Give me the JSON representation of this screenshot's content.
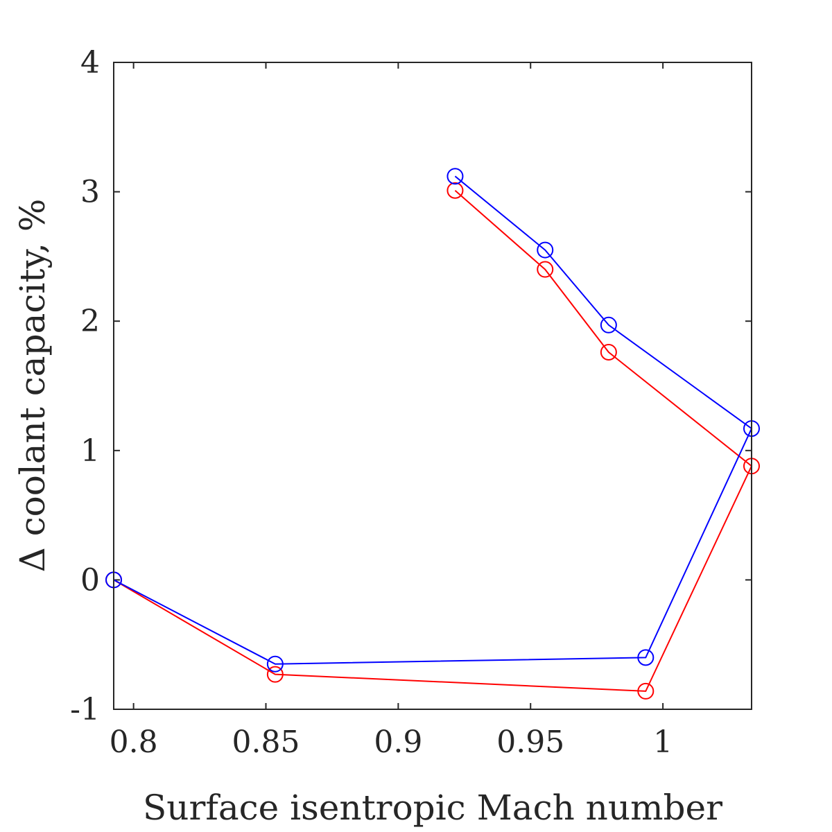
{
  "chart_data": {
    "type": "line",
    "xlabel": "Surface isentropic Mach number",
    "ylabel": "Δ  coolant capacity, %",
    "xlim": [
      0.7925,
      1.0335
    ],
    "ylim": [
      -1,
      4
    ],
    "xticks": [
      0.8,
      0.85,
      0.9,
      0.95,
      1
    ],
    "xtick_labels": [
      "0.8",
      "0.85",
      "0.9",
      "0.95",
      "1"
    ],
    "yticks": [
      -1,
      0,
      1,
      2,
      3,
      4
    ],
    "ytick_labels": [
      "-1",
      "0",
      "1",
      "2",
      "3",
      "4"
    ],
    "grid": false,
    "box": true,
    "marker": "circle-open",
    "series": [
      {
        "color": "#0000ff",
        "x": [
          0.7925,
          0.8535,
          0.9935,
          1.0335,
          0.9795,
          0.9555,
          0.9215
        ],
        "y": [
          0.0,
          -0.65,
          -0.6,
          1.17,
          1.97,
          2.55,
          3.12
        ]
      },
      {
        "color": "#ff0000",
        "x": [
          0.7925,
          0.8535,
          0.9935,
          1.0335,
          0.9795,
          0.9555,
          0.9215
        ],
        "y": [
          0.0,
          -0.73,
          -0.86,
          0.88,
          1.76,
          2.4,
          3.01
        ]
      }
    ]
  }
}
